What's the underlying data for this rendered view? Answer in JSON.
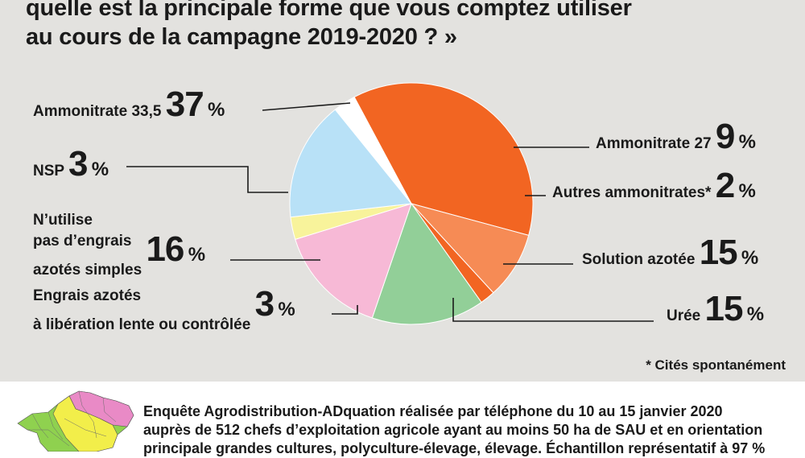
{
  "title": {
    "line1": "quelle est la principale forme que vous comptez utiliser",
    "line2": "au cours de la campagne 2019-2020 ? »"
  },
  "chart_data": {
    "type": "pie",
    "slices": [
      {
        "label": "Ammonitrate 33,5",
        "value": 37,
        "value_text": "37",
        "color": "#f26522"
      },
      {
        "label": "Ammonitrate 27",
        "value": 9,
        "value_text": "9",
        "color": "#f68b55"
      },
      {
        "label": "Autres ammonitrates*",
        "value": 2,
        "value_text": "2",
        "color": "#f26522"
      },
      {
        "label": "Solution azotée",
        "value": 15,
        "value_text": "15",
        "color": "#92cf98"
      },
      {
        "label": "Urée",
        "value": 15,
        "value_text": "15",
        "color": "#f7b9d6"
      },
      {
        "label": "Engrais azotés à libération lente ou contrôlée",
        "value": 3,
        "value_text": "3",
        "color": "#f8f39b"
      },
      {
        "label": "N'utilise pas d'engrais azotés simples",
        "value": 16,
        "value_text": "16",
        "color": "#b8e1f7"
      },
      {
        "label": "NSP",
        "value": 3,
        "value_text": "3",
        "color": "#ffffff"
      }
    ],
    "unit": "%"
  },
  "labels": {
    "ammo335": "Ammonitrate 33,5",
    "ammo27": "Ammonitrate 27",
    "autres": "Autres ammonitrates*",
    "solution": "Solution azotée",
    "uree": "Urée",
    "lente_line1": "Engrais azotés",
    "lente_line2": "à libération lente ou contrôlée",
    "nutilise_line1": "N’utilise",
    "nutilise_line2": "pas d’engrais",
    "nutilise_line3": "azotés simples",
    "nsp": "NSP"
  },
  "footnote": "* Cités spontanément",
  "survey": {
    "line1": "Enquête Agrodistribution-ADquation réalisée par téléphone du 10 au 15 janvier 2020",
    "line2": "auprès de 512 chefs d’exploitation agricole ayant au moins 50 ha de SAU et en orientation",
    "line3": "principale grandes cultures, polyculture-élevage, élevage. Échantillon représentatif à 97 %"
  }
}
